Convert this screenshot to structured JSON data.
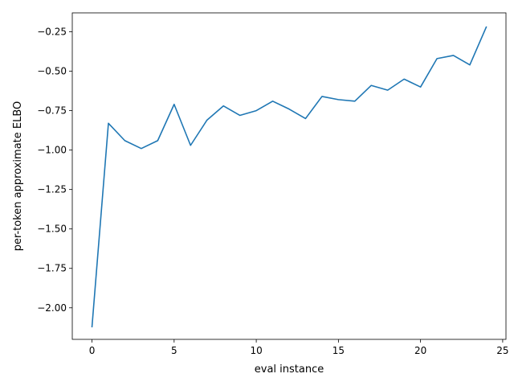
{
  "chart_data": {
    "type": "line",
    "title": "",
    "xlabel": "eval instance",
    "ylabel": "per-token approximate ELBO",
    "xlim": [
      -1.2,
      25.2
    ],
    "ylim": [
      -2.2,
      -0.13
    ],
    "x_ticks": [
      0,
      5,
      10,
      15,
      20,
      25
    ],
    "x_tick_labels": [
      "0",
      "5",
      "10",
      "15",
      "20",
      "25"
    ],
    "y_ticks": [
      -2.0,
      -1.75,
      -1.5,
      -1.25,
      -1.0,
      -0.75,
      -0.5,
      -0.25
    ],
    "y_tick_labels": [
      "−2.00",
      "−1.75",
      "−1.50",
      "−1.25",
      "−1.00",
      "−0.75",
      "−0.50",
      "−0.25"
    ],
    "grid": false,
    "series": [
      {
        "color": "#1f77b4",
        "x": [
          0,
          1,
          2,
          3,
          4,
          5,
          6,
          7,
          8,
          9,
          10,
          11,
          12,
          13,
          14,
          15,
          16,
          17,
          18,
          19,
          20,
          21,
          22,
          23,
          24
        ],
        "y": [
          -2.12,
          -0.83,
          -0.94,
          -0.99,
          -0.94,
          -0.71,
          -0.97,
          -0.81,
          -0.72,
          -0.78,
          -0.75,
          -0.69,
          -0.74,
          -0.8,
          -0.66,
          -0.68,
          -0.69,
          -0.59,
          -0.62,
          -0.55,
          -0.6,
          -0.42,
          -0.4,
          -0.46,
          -0.22
        ]
      }
    ]
  }
}
